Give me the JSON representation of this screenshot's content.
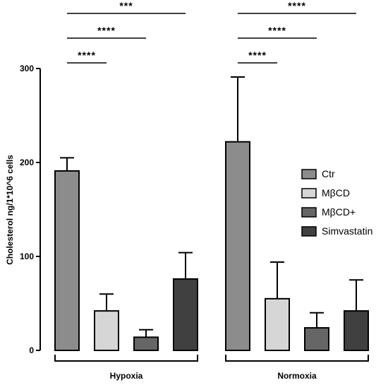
{
  "chart_data": {
    "type": "bar",
    "ylabel": "Cholesterol ng/1*10^6 cells",
    "ylim": [
      0,
      300
    ],
    "yticks": [
      0,
      100,
      200,
      300
    ],
    "groups": [
      "Hypoxia",
      "Normoxia"
    ],
    "series": [
      {
        "name": "Ctr",
        "values": [
          191,
          222
        ],
        "errors": [
          14,
          69
        ],
        "color": "#8c8c8c"
      },
      {
        "name": "MβCD",
        "values": [
          42,
          55
        ],
        "errors": [
          18,
          39
        ],
        "color": "#d6d6d6"
      },
      {
        "name": "MβCD+",
        "values": [
          14,
          24
        ],
        "errors": [
          8,
          16
        ],
        "color": "#666666"
      },
      {
        "name": "Simvastatin",
        "values": [
          76,
          42
        ],
        "errors": [
          28,
          33
        ],
        "color": "#404040"
      }
    ],
    "significance": [
      {
        "group": "Hypoxia",
        "from": "Ctr",
        "to": "MβCD",
        "label": "****"
      },
      {
        "group": "Hypoxia",
        "from": "Ctr",
        "to": "MβCD+",
        "label": "****"
      },
      {
        "group": "Hypoxia",
        "from": "Ctr",
        "to": "Simvastatin",
        "label": "***"
      },
      {
        "group": "Normoxia",
        "from": "Ctr",
        "to": "MβCD",
        "label": "****"
      },
      {
        "group": "Normoxia",
        "from": "Ctr",
        "to": "MβCD+",
        "label": "****"
      },
      {
        "group": "Normoxia",
        "from": "Ctr",
        "to": "Simvastatin",
        "label": "****"
      }
    ],
    "legend_position": "right"
  }
}
